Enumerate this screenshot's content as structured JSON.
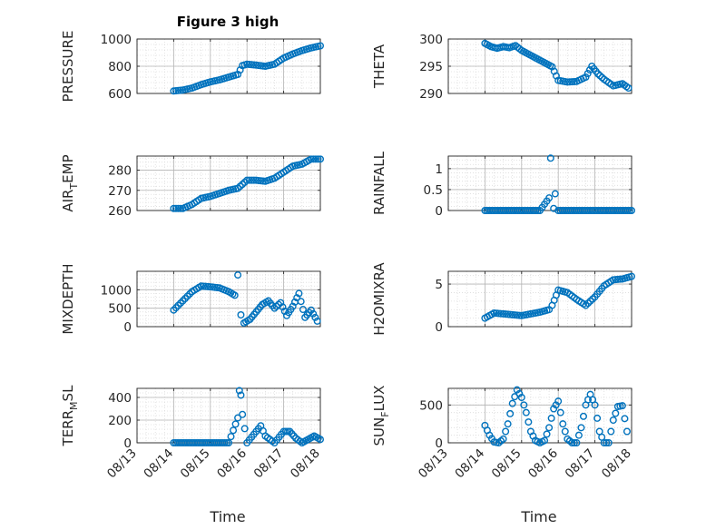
{
  "figure": {
    "title": "Figure 3 high",
    "xlabel": "Time",
    "date_ticks": [
      "08/13",
      "08/14",
      "08/15",
      "08/16",
      "08/17",
      "08/18"
    ],
    "marker_color": "#0072BD",
    "axis_color": "#262626",
    "grid_color": "#b4b4b4"
  },
  "chart_data": [
    {
      "type": "scatter",
      "title": "Figure 3 high",
      "ylabel": "PRESSURE",
      "xlim": [
        "08/13",
        "08/18"
      ],
      "ylim": [
        600,
        1000
      ],
      "yticks": [
        600,
        800,
        1000
      ],
      "ytick_labels": [
        "600",
        "800",
        "1000"
      ],
      "show_xticklabels": false,
      "grid": true,
      "x": [
        "08/14 00:00",
        "08/14 06:00",
        "08/14 12:00",
        "08/14 18:00",
        "08/15 00:00",
        "08/15 06:00",
        "08/15 12:00",
        "08/15 18:00",
        "08/15 21:00",
        "08/16 00:00",
        "08/16 06:00",
        "08/16 12:00",
        "08/16 18:00",
        "08/17 00:00",
        "08/17 06:00",
        "08/17 12:00",
        "08/17 18:00",
        "08/18 00:00"
      ],
      "y": [
        618,
        625,
        640,
        665,
        685,
        700,
        720,
        740,
        805,
        815,
        808,
        800,
        815,
        860,
        890,
        915,
        935,
        950
      ]
    },
    {
      "type": "scatter",
      "ylabel": "THETA",
      "xlim": [
        "08/13",
        "08/18"
      ],
      "ylim": [
        290,
        300
      ],
      "yticks": [
        290,
        295,
        300
      ],
      "ytick_labels": [
        "290",
        "295",
        "300"
      ],
      "show_xticklabels": false,
      "grid": true,
      "x": [
        "08/14 00:00",
        "08/14 04:00",
        "08/14 08:00",
        "08/14 12:00",
        "08/14 16:00",
        "08/14 20:00",
        "08/15 00:00",
        "08/15 04:00",
        "08/15 08:00",
        "08/15 12:00",
        "08/15 16:00",
        "08/15 20:00",
        "08/16 00:00",
        "08/16 06:00",
        "08/16 12:00",
        "08/16 18:00",
        "08/16 22:00",
        "08/17 02:00",
        "08/17 06:00",
        "08/17 12:00",
        "08/17 18:00",
        "08/17 22:00"
      ],
      "y": [
        299.2,
        298.6,
        298.3,
        298.6,
        298.4,
        298.8,
        297.9,
        297.3,
        296.7,
        296.1,
        295.5,
        294.9,
        292.4,
        292.1,
        292.2,
        293.0,
        295.0,
        293.6,
        292.6,
        291.4,
        291.8,
        291.0
      ]
    },
    {
      "type": "scatter",
      "ylabel": "AIR_TEMP",
      "xlim": [
        "08/13",
        "08/18"
      ],
      "ylim": [
        260,
        287
      ],
      "yticks": [
        260,
        270,
        280
      ],
      "ytick_labels": [
        "260",
        "270",
        "280"
      ],
      "show_xticklabels": false,
      "grid": true,
      "x": [
        "08/14 00:00",
        "08/14 06:00",
        "08/14 12:00",
        "08/14 18:00",
        "08/15 00:00",
        "08/15 06:00",
        "08/15 12:00",
        "08/15 18:00",
        "08/16 00:00",
        "08/16 06:00",
        "08/16 12:00",
        "08/16 18:00",
        "08/17 00:00",
        "08/17 06:00",
        "08/17 12:00",
        "08/17 18:00",
        "08/18 00:00"
      ],
      "y": [
        261,
        261,
        263,
        266,
        267,
        268.5,
        270,
        271,
        275,
        275,
        274.5,
        276,
        279,
        282,
        283,
        285.5,
        285.5
      ]
    },
    {
      "type": "scatter",
      "ylabel": "RAINFALL",
      "xlim": [
        "08/13",
        "08/18"
      ],
      "ylim": [
        0,
        1.3
      ],
      "yticks": [
        0,
        0.5,
        1
      ],
      "ytick_labels": [
        "0",
        "0.5",
        "1"
      ],
      "show_xticklabels": false,
      "grid": true,
      "x": [
        "08/14 00:00",
        "08/14 12:00",
        "08/15 00:00",
        "08/15 12:00",
        "08/15 18:00",
        "08/15 19:00",
        "08/15 21:00",
        "08/15 22:00",
        "08/16 00:00",
        "08/16 12:00",
        "08/17 00:00",
        "08/17 12:00",
        "08/18 00:00"
      ],
      "y": [
        0,
        0,
        0,
        0,
        0.3,
        1.25,
        0.05,
        0.4,
        0,
        0,
        0,
        0,
        0
      ]
    },
    {
      "type": "scatter",
      "ylabel": "MIXDEPTH",
      "xlim": [
        "08/13",
        "08/18"
      ],
      "ylim": [
        0,
        1500
      ],
      "yticks": [
        0,
        500,
        1000
      ],
      "ytick_labels": [
        "0",
        "500",
        "1000"
      ],
      "show_xticklabels": false,
      "grid": true,
      "x": [
        "08/14 00:00",
        "08/14 06:00",
        "08/14 12:00",
        "08/14 18:00",
        "08/15 00:00",
        "08/15 06:00",
        "08/15 12:00",
        "08/15 16:00",
        "08/15 18:00",
        "08/15 20:00",
        "08/15 22:00",
        "08/16 02:00",
        "08/16 06:00",
        "08/16 10:00",
        "08/16 14:00",
        "08/16 18:00",
        "08/16 22:00",
        "08/17 02:00",
        "08/17 06:00",
        "08/17 10:00",
        "08/17 14:00",
        "08/17 18:00",
        "08/17 22:00"
      ],
      "y": [
        450,
        700,
        950,
        1100,
        1080,
        1050,
        950,
        850,
        1400,
        320,
        100,
        200,
        400,
        600,
        700,
        500,
        650,
        300,
        550,
        900,
        250,
        450,
        150
      ]
    },
    {
      "type": "scatter",
      "ylabel": "H2OMIXRA",
      "xlim": [
        "08/13",
        "08/18"
      ],
      "ylim": [
        0,
        6.5
      ],
      "yticks": [
        0,
        5
      ],
      "ytick_labels": [
        "0",
        "5"
      ],
      "show_xticklabels": false,
      "grid": true,
      "x": [
        "08/14 00:00",
        "08/14 06:00",
        "08/14 12:00",
        "08/14 18:00",
        "08/15 00:00",
        "08/15 06:00",
        "08/15 12:00",
        "08/15 18:00",
        "08/15 20:00",
        "08/16 00:00",
        "08/16 06:00",
        "08/16 12:00",
        "08/16 18:00",
        "08/17 00:00",
        "08/17 06:00",
        "08/17 12:00",
        "08/17 18:00",
        "08/18 00:00"
      ],
      "y": [
        1.0,
        1.6,
        1.5,
        1.4,
        1.3,
        1.5,
        1.7,
        2.0,
        2.5,
        4.3,
        4.0,
        3.2,
        2.5,
        3.5,
        4.8,
        5.5,
        5.6,
        5.9
      ]
    },
    {
      "type": "scatter",
      "ylabel": "TERR_MSL",
      "xlim": [
        "08/13",
        "08/18"
      ],
      "ylim": [
        0,
        480
      ],
      "yticks": [
        0,
        200,
        400
      ],
      "ytick_labels": [
        "0",
        "200",
        "400"
      ],
      "show_xticklabels": true,
      "grid": true,
      "x": [
        "08/14 00:00",
        "08/14 12:00",
        "08/15 00:00",
        "08/15 12:00",
        "08/15 18:00",
        "08/15 19:00",
        "08/15 20:00",
        "08/15 21:00",
        "08/16 00:00",
        "08/16 09:00",
        "08/16 12:00",
        "08/16 18:00",
        "08/17 00:00",
        "08/17 04:00",
        "08/17 08:00",
        "08/17 12:00",
        "08/17 20:00",
        "08/18 00:00"
      ],
      "y": [
        0,
        0,
        0,
        0,
        220,
        460,
        420,
        250,
        0,
        150,
        60,
        0,
        100,
        100,
        40,
        0,
        60,
        30
      ]
    },
    {
      "type": "scatter",
      "ylabel": "SUN_FLUX",
      "xlim": [
        "08/13",
        "08/18"
      ],
      "ylim": [
        0,
        720
      ],
      "yticks": [
        0,
        500
      ],
      "ytick_labels": [
        "0",
        "500"
      ],
      "show_xticklabels": true,
      "grid": true,
      "x": [
        "08/14 00:00",
        "08/14 03:00",
        "08/14 06:00",
        "08/14 09:00",
        "08/14 12:00",
        "08/14 15:00",
        "08/14 18:00",
        "08/14 21:00",
        "08/15 00:00",
        "08/15 03:00",
        "08/15 06:00",
        "08/15 09:00",
        "08/15 12:00",
        "08/15 15:00",
        "08/15 18:00",
        "08/15 21:00",
        "08/16 00:00",
        "08/16 03:00",
        "08/16 06:00",
        "08/16 09:00",
        "08/16 12:00",
        "08/16 15:00",
        "08/16 18:00",
        "08/16 21:00",
        "08/17 00:00",
        "08/17 03:00",
        "08/17 06:00",
        "08/17 09:00",
        "08/17 12:00",
        "08/17 15:00",
        "08/17 18:00",
        "08/17 21:00"
      ],
      "y": [
        230,
        100,
        10,
        0,
        50,
        250,
        520,
        700,
        600,
        400,
        150,
        30,
        0,
        30,
        200,
        450,
        550,
        250,
        50,
        0,
        0,
        200,
        500,
        640,
        500,
        150,
        0,
        0,
        300,
        480,
        490,
        150
      ]
    }
  ]
}
